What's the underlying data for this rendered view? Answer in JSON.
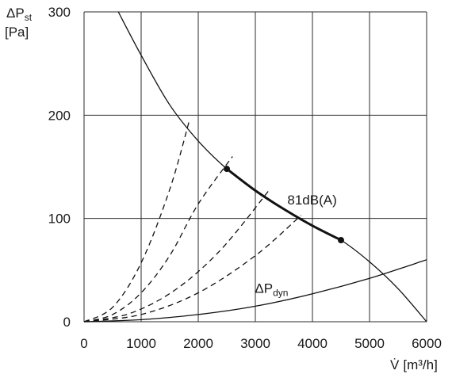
{
  "chart_data": {
    "type": "line",
    "title": "",
    "xlabel": {
      "symbol": "V̇",
      "unit": "[m³/h]"
    },
    "ylabel": {
      "symbol": "ΔP",
      "subscript": "st",
      "unit": "[Pa]"
    },
    "xlim": [
      0,
      6000
    ],
    "ylim": [
      0,
      300
    ],
    "x_ticks": [
      0,
      1000,
      2000,
      3000,
      4000,
      5000,
      6000
    ],
    "y_ticks": [
      0,
      100,
      200,
      300
    ],
    "grid": true,
    "series": [
      {
        "name": "",
        "style": "solid-thin",
        "x": [
          600,
          1000,
          1500,
          2000,
          2500,
          3000,
          3500,
          4000,
          4500,
          5000,
          5500,
          6000
        ],
        "y": [
          300,
          258,
          210,
          175,
          148,
          127,
          109,
          93,
          79,
          58,
          32,
          0
        ]
      },
      {
        "name": "",
        "style": "solid-bold",
        "x": [
          2500,
          3000,
          3500,
          4000,
          4500
        ],
        "y": [
          148,
          127,
          109,
          93,
          79
        ]
      },
      {
        "name": "ΔP dyn",
        "style": "solid-thin",
        "x": [
          0,
          1000,
          2000,
          3000,
          4000,
          5000,
          6000
        ],
        "y": [
          0,
          2,
          7,
          15,
          27,
          42,
          60
        ]
      },
      {
        "name": "",
        "style": "dashed",
        "x": [
          0,
          500,
          1000,
          1500,
          1850
        ],
        "y": [
          0,
          14,
          57,
          128,
          196
        ]
      },
      {
        "name": "",
        "style": "dashed",
        "x": [
          0,
          500,
          1000,
          1500,
          2000,
          2600
        ],
        "y": [
          0,
          7,
          28,
          64,
          114,
          160
        ]
      },
      {
        "name": "",
        "style": "dashed",
        "x": [
          0,
          800,
          1600,
          2400,
          3250
        ],
        "y": [
          0,
          8,
          31,
          70,
          128
        ]
      },
      {
        "name": "",
        "style": "dashed",
        "x": [
          0,
          1000,
          2000,
          3000,
          3800
        ],
        "y": [
          0,
          7,
          28,
          64,
          103
        ]
      }
    ],
    "points": [
      {
        "x": 2500,
        "y": 148
      },
      {
        "x": 4500,
        "y": 79
      }
    ],
    "annotations": [
      {
        "text": "81dB(A)",
        "x": 3950,
        "y": 118
      },
      {
        "text": "ΔP",
        "subscript": "dyn",
        "x": 3200,
        "y": 18
      }
    ]
  }
}
